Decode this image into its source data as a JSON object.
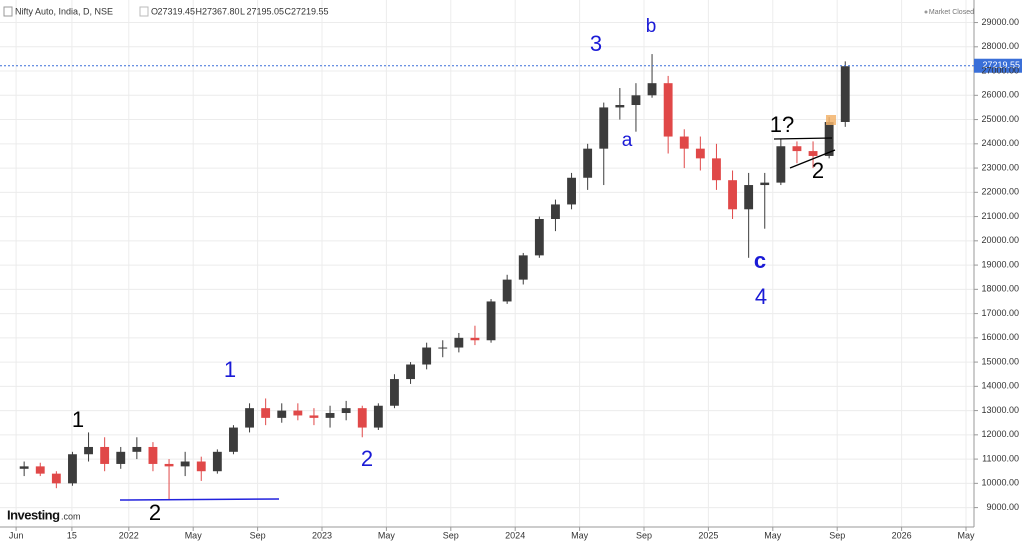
{
  "chart_data": {
    "type": "candlestick",
    "title": "Nifty Auto, India, D, NSE",
    "ohlc_legend": [
      {
        "label": "O",
        "value": "27319.45"
      },
      {
        "label": "H",
        "value": "27367.80"
      },
      {
        "label": "L",
        "value": "27195.05"
      },
      {
        "label": "C",
        "value": "27219.55"
      }
    ],
    "status": "Market Closed",
    "brand": {
      "name": "Investing",
      "suffix": ".com"
    },
    "last_price": {
      "value": 27219.55,
      "label": "27219.55"
    },
    "up_color": "#3c3c3c",
    "down_color": "#e04848",
    "x": [
      "2021-06",
      "2021-07",
      "2021-08",
      "2021-09",
      "2021-10",
      "2021-11",
      "2021-12",
      "2022-01",
      "2022-02",
      "2022-03",
      "2022-04",
      "2022-05",
      "2022-06",
      "2022-07",
      "2022-08",
      "2022-09",
      "2022-10",
      "2022-11",
      "2022-12",
      "2023-01",
      "2023-02",
      "2023-03",
      "2023-04",
      "2023-05",
      "2023-06",
      "2023-07",
      "2023-08",
      "2023-09",
      "2023-10",
      "2023-11",
      "2023-12",
      "2024-01",
      "2024-02",
      "2024-03",
      "2024-04",
      "2024-05",
      "2024-06",
      "2024-07",
      "2024-08",
      "2024-09",
      "2024-10",
      "2024-11",
      "2024-12",
      "2025-01",
      "2025-02",
      "2025-03",
      "2025-04",
      "2025-05",
      "2025-06",
      "2025-07",
      "2025-08",
      "2025-09"
    ],
    "open": [
      10600,
      10700,
      10400,
      10000,
      11200,
      11500,
      10800,
      11300,
      11500,
      10800,
      10700,
      10900,
      10500,
      11300,
      12300,
      13100,
      12700,
      13000,
      12800,
      12700,
      12900,
      13100,
      12300,
      13200,
      14300,
      14900,
      15600,
      15600,
      16000,
      15900,
      17500,
      18400,
      19400,
      20900,
      21500,
      22600,
      23800,
      25500,
      25600,
      26000,
      26500,
      24300,
      23800,
      23400,
      22500,
      21300,
      22300,
      22400,
      23900,
      23700,
      23500,
      24900
    ],
    "high": [
      10900,
      10850,
      10500,
      11300,
      12100,
      11900,
      11500,
      11900,
      11700,
      11000,
      11300,
      11100,
      11400,
      12400,
      13300,
      13500,
      13300,
      13300,
      13100,
      13200,
      13400,
      13200,
      13300,
      14500,
      15000,
      15800,
      15900,
      16200,
      16500,
      17600,
      18600,
      19500,
      21000,
      21700,
      22800,
      24000,
      25700,
      26300,
      26500,
      27700,
      26800,
      24600,
      24300,
      24000,
      22900,
      22800,
      22800,
      24200,
      24100,
      24100,
      25100,
      27400
    ],
    "low": [
      10300,
      10300,
      9800,
      9900,
      10900,
      10500,
      10600,
      11000,
      10500,
      9300,
      10300,
      10100,
      10400,
      11200,
      12100,
      12400,
      12500,
      12600,
      12400,
      12300,
      12600,
      11900,
      12200,
      13100,
      14100,
      14700,
      15200,
      15400,
      15700,
      15800,
      17400,
      18200,
      19300,
      20400,
      21300,
      22100,
      22300,
      25000,
      24500,
      25900,
      23600,
      23000,
      22900,
      22100,
      20900,
      19300,
      20500,
      22300,
      23200,
      23000,
      23400,
      24700
    ],
    "close": [
      10700,
      10400,
      10000,
      11200,
      11500,
      10800,
      11300,
      11500,
      10800,
      10700,
      10900,
      10500,
      11300,
      12300,
      13100,
      12700,
      13000,
      12800,
      12700,
      12900,
      13100,
      12300,
      13200,
      14300,
      14900,
      15600,
      15600,
      16000,
      15900,
      17500,
      18400,
      19400,
      20900,
      21500,
      22600,
      23800,
      25500,
      25600,
      26000,
      26500,
      24300,
      23800,
      23400,
      22500,
      21300,
      22300,
      22400,
      23900,
      23700,
      23500,
      24900,
      27200
    ],
    "xlim": [
      "2021-05",
      "2026-05"
    ],
    "xticks": [
      {
        "value": "2021-06",
        "label": "Jun"
      },
      {
        "value": "2021-09-15",
        "label": "15"
      },
      {
        "value": "2022-01",
        "label": "2022"
      },
      {
        "value": "2022-05",
        "label": "May"
      },
      {
        "value": "2022-09",
        "label": "Sep"
      },
      {
        "value": "2023-01",
        "label": "2023"
      },
      {
        "value": "2023-05",
        "label": "May"
      },
      {
        "value": "2023-09",
        "label": "Sep"
      },
      {
        "value": "2024-01",
        "label": "2024"
      },
      {
        "value": "2024-05",
        "label": "May"
      },
      {
        "value": "2024-09",
        "label": "Sep"
      },
      {
        "value": "2025-01",
        "label": "2025"
      },
      {
        "value": "2025-05",
        "label": "May"
      },
      {
        "value": "2025-09",
        "label": "Sep"
      },
      {
        "value": "2026-01",
        "label": "2026"
      },
      {
        "value": "2026-05",
        "label": "May"
      }
    ],
    "ylim": [
      8200,
      29600
    ],
    "yticks": [
      {
        "value": 9000,
        "label": "9000.00"
      },
      {
        "value": 10000,
        "label": "10000.00"
      },
      {
        "value": 11000,
        "label": "11000.00"
      },
      {
        "value": 12000,
        "label": "12000.00"
      },
      {
        "value": 13000,
        "label": "13000.00"
      },
      {
        "value": 14000,
        "label": "14000.00"
      },
      {
        "value": 15000,
        "label": "15000.00"
      },
      {
        "value": 16000,
        "label": "16000.00"
      },
      {
        "value": 17000,
        "label": "17000.00"
      },
      {
        "value": 18000,
        "label": "18000.00"
      },
      {
        "value": 19000,
        "label": "19000.00"
      },
      {
        "value": 20000,
        "label": "20000.00"
      },
      {
        "value": 21000,
        "label": "21000.00"
      },
      {
        "value": 22000,
        "label": "22000.00"
      },
      {
        "value": 23000,
        "label": "23000.00"
      },
      {
        "value": 24000,
        "label": "24000.00"
      },
      {
        "value": 25000,
        "label": "25000.00"
      },
      {
        "value": 26000,
        "label": "26000.00"
      },
      {
        "value": 27000,
        "label": "27000.00"
      },
      {
        "value": 28000,
        "label": "28000.00"
      },
      {
        "value": 29000,
        "label": "29000.00"
      }
    ],
    "grid": true,
    "annotations": [
      "1",
      "2",
      "1",
      "2",
      "3",
      "b",
      "a",
      "c",
      "4",
      "1?",
      "2"
    ]
  }
}
